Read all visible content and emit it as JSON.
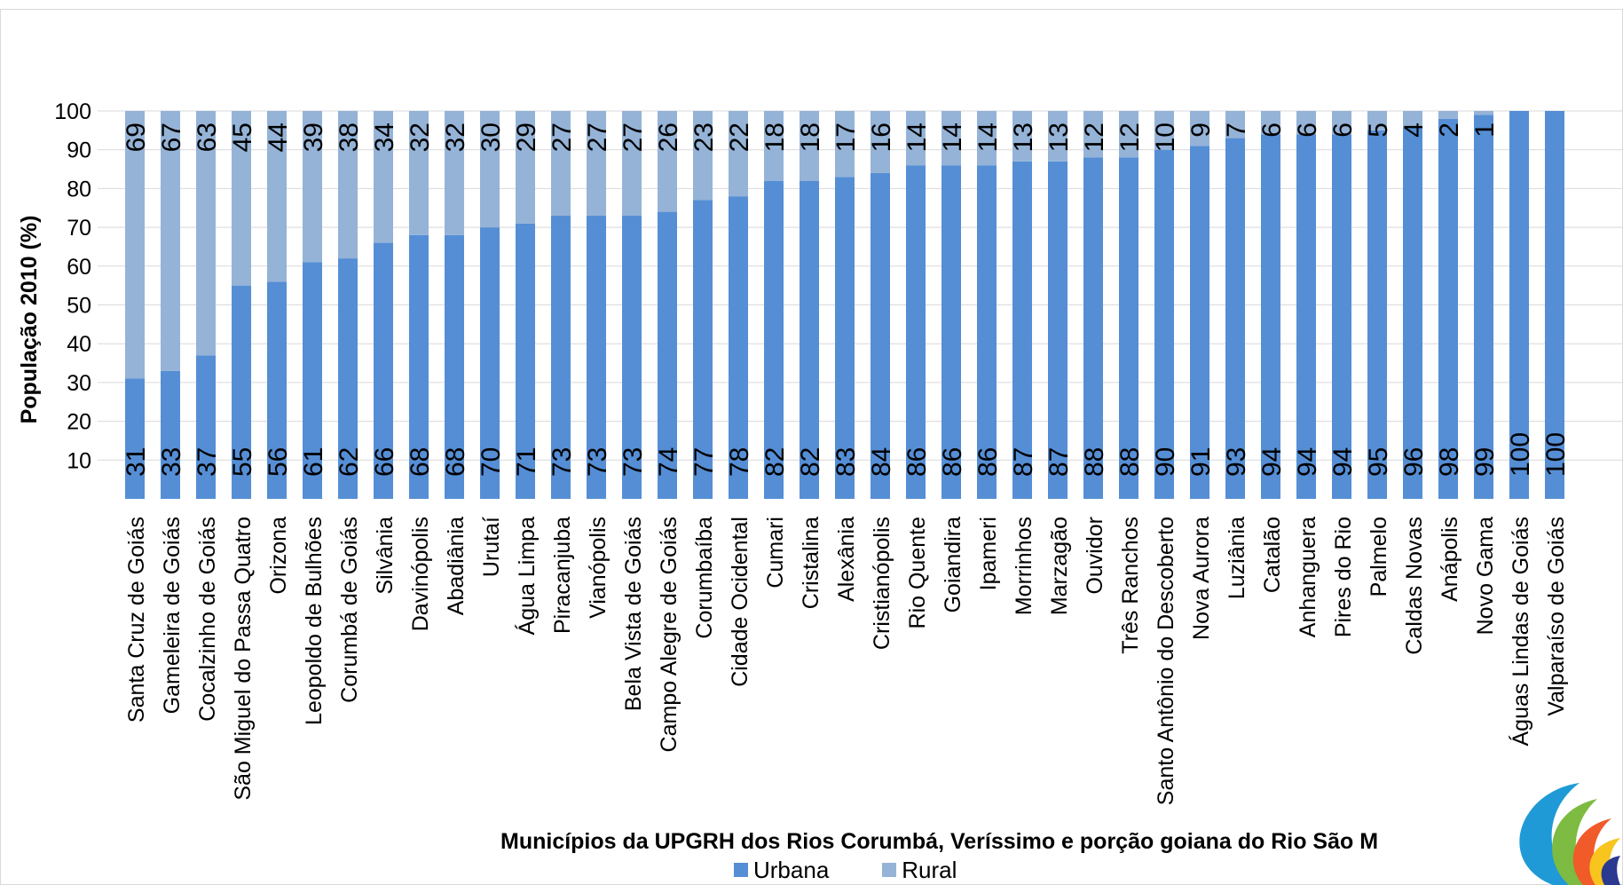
{
  "chart_data": {
    "type": "bar",
    "stacked": true,
    "title": "",
    "ylabel": "População 2010 (%)",
    "xlabel": "Municípios da UPGRH dos Rios Corumbá, Veríssimo e porção goiana do Rio São M",
    "ylim": [
      0,
      100
    ],
    "yticks": [
      10,
      20,
      30,
      40,
      50,
      60,
      70,
      80,
      90,
      100
    ],
    "grid": true,
    "legend_position": "bottom",
    "categories": [
      "Santa Cruz de Goiás",
      "Gameleira de Goiás",
      "Cocalzinho de Goiás",
      "São Miguel do Passa Quatro",
      "Orizona",
      "Leopoldo de Bulhões",
      "Corumbá de Goiás",
      "Silvânia",
      "Davinópolis",
      "Abadiânia",
      "Urutaí",
      "Água Limpa",
      "Piracanjuba",
      "Vianópolis",
      "Bela Vista de Goiás",
      "Campo Alegre de Goiás",
      "Corumbaíba",
      "Cidade Ocidental",
      "Cumari",
      "Cristalina",
      "Alexânia",
      "Cristianópolis",
      "Rio Quente",
      "Goiandira",
      "Ipameri",
      "Morrinhos",
      "Marzagão",
      "Ouvidor",
      "Três Ranchos",
      "Santo Antônio do Descoberto",
      "Nova Aurora",
      "Luziânia",
      "Catalão",
      "Anhanguera",
      "Pires do Rio",
      "Palmelo",
      "Caldas Novas",
      "Anápolis",
      "Novo Gama",
      "Águas Lindas de Goiás",
      "Valparaíso de Goiás"
    ],
    "series": [
      {
        "name": "Urbana",
        "color": "#558ed5",
        "values": [
          31,
          33,
          37,
          55,
          56,
          61,
          62,
          66,
          68,
          68,
          70,
          71,
          73,
          73,
          73,
          74,
          77,
          78,
          82,
          82,
          83,
          84,
          86,
          86,
          86,
          87,
          87,
          88,
          88,
          90,
          91,
          93,
          94,
          94,
          94,
          95,
          96,
          98,
          99,
          100,
          100
        ],
        "labels": [
          "31",
          "33",
          "37",
          "55",
          "56",
          "61",
          "62",
          "66",
          "68",
          "68",
          "70",
          "71",
          "73",
          "73",
          "73",
          "74",
          "77",
          "78",
          "82",
          "82",
          "83",
          "84",
          "86",
          "86",
          "86",
          "87",
          "87",
          "88",
          "88",
          "90",
          "91",
          "93",
          "94",
          "94",
          "94",
          "95",
          "96",
          "98",
          "99",
          "100",
          "100"
        ]
      },
      {
        "name": "Rural",
        "color": "#95b3d7",
        "values": [
          69,
          67,
          63,
          45,
          44,
          39,
          38,
          34,
          32,
          32,
          30,
          29,
          27,
          27,
          27,
          26,
          23,
          22,
          18,
          18,
          17,
          16,
          14,
          14,
          14,
          13,
          13,
          12,
          12,
          10,
          9,
          7,
          6,
          6,
          6,
          5,
          4,
          2,
          1,
          0,
          0
        ],
        "labels": [
          "69",
          "67",
          "63",
          "45",
          "44",
          "39",
          "38",
          "34",
          "32",
          "32",
          "30",
          "29",
          "27",
          "27",
          "27",
          "26",
          "23",
          "22",
          "18",
          "18",
          "17",
          "16",
          "14",
          "14",
          "14",
          "13",
          "13",
          "12",
          "12",
          "10",
          "9",
          "7",
          "6",
          "6",
          "6",
          "5",
          "4",
          "2",
          "1",
          "",
          ""
        ]
      }
    ]
  },
  "logo": {
    "name": "agency-logo",
    "colors": [
      "#1f9ad6",
      "#7dbb42",
      "#f15a29",
      "#f7c51e",
      "#2b3990",
      "#39b54a"
    ]
  }
}
